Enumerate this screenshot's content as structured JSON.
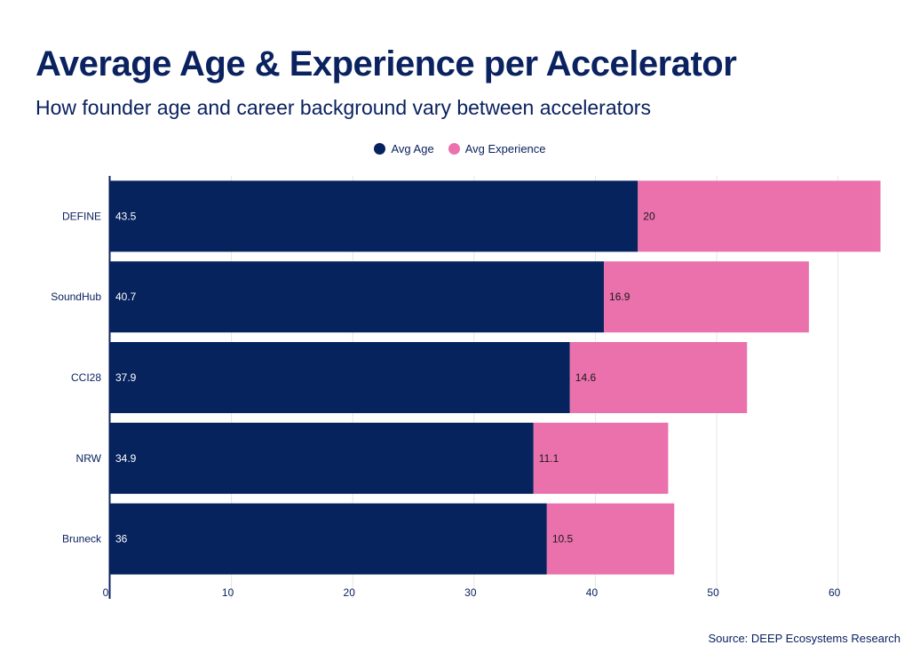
{
  "title": "Average Age & Experience per Accelerator",
  "subtitle": "How founder age and career background vary between accelerators",
  "source": "Source: DEEP Ecosystems Research",
  "colors": {
    "age": "#07235e",
    "experience": "#ea71ac",
    "grid": "#e6e6e6",
    "axis": "#0b2260"
  },
  "chart_data": {
    "type": "bar",
    "orientation": "horizontal",
    "stacked": true,
    "categories": [
      "DEFINE",
      "SoundHub",
      "CCI28",
      "NRW",
      "Bruneck"
    ],
    "series": [
      {
        "name": "Avg Age",
        "values": [
          43.5,
          40.7,
          37.9,
          34.9,
          36
        ],
        "labels": [
          "43.5",
          "40.7",
          "37.9",
          "34.9",
          "36"
        ]
      },
      {
        "name": "Avg Experience",
        "values": [
          20,
          16.9,
          14.6,
          11.1,
          10.5
        ],
        "labels": [
          "20",
          "16.9",
          "14.6",
          "11.1",
          "10.5"
        ]
      }
    ],
    "xlim": [
      0,
      65
    ],
    "xticks": [
      0,
      10,
      20,
      30,
      40,
      50,
      60
    ],
    "legend_position": "top-center",
    "grid": true
  }
}
